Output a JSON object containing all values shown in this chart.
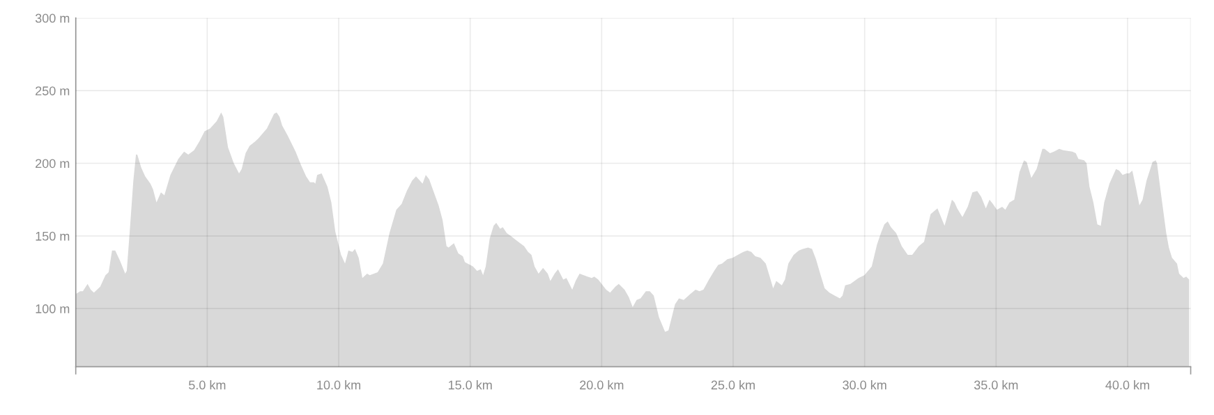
{
  "chart_data": {
    "type": "area",
    "grid": true,
    "xlim": [
      0,
      42.4
    ],
    "ylim": [
      60,
      300
    ],
    "xticks": [
      {
        "value": 0,
        "label": null
      },
      {
        "value": 5,
        "label": "5.0 km"
      },
      {
        "value": 10,
        "label": "10.0 km"
      },
      {
        "value": 15,
        "label": "15.0 km"
      },
      {
        "value": 20,
        "label": "20.0 km"
      },
      {
        "value": 25,
        "label": "25.0 km"
      },
      {
        "value": 30,
        "label": "30.0 km"
      },
      {
        "value": 35,
        "label": "35.0 km"
      },
      {
        "value": 40,
        "label": "40.0 km"
      },
      {
        "value": 42.4,
        "label": null
      }
    ],
    "yticks": [
      {
        "value": 100,
        "label": "100 m"
      },
      {
        "value": 150,
        "label": "150 m"
      },
      {
        "value": 200,
        "label": "200 m"
      },
      {
        "value": 250,
        "label": "250 m"
      },
      {
        "value": 300,
        "label": "300 m"
      }
    ],
    "series": [
      {
        "color": "#d9d9d9",
        "x": [
          0.0,
          0.17,
          0.27,
          0.45,
          0.57,
          0.69,
          0.93,
          1.13,
          1.25,
          1.38,
          1.5,
          1.68,
          1.88,
          1.94,
          2.06,
          2.19,
          2.29,
          2.34,
          2.49,
          2.64,
          2.84,
          2.94,
          3.07,
          3.24,
          3.37,
          3.6,
          3.9,
          4.12,
          4.28,
          4.5,
          4.7,
          4.9,
          5.11,
          5.21,
          5.36,
          5.53,
          5.61,
          5.79,
          6.01,
          6.21,
          6.31,
          6.46,
          6.61,
          6.82,
          6.94,
          7.27,
          7.54,
          7.64,
          7.75,
          7.85,
          8.06,
          8.36,
          8.56,
          8.76,
          8.91,
          9.06,
          9.11,
          9.18,
          9.35,
          9.57,
          9.72,
          9.87,
          10.09,
          10.24,
          10.37,
          10.52,
          10.62,
          10.76,
          10.9,
          11.08,
          11.18,
          11.48,
          11.68,
          11.93,
          12.19,
          12.39,
          12.59,
          12.79,
          12.94,
          13.19,
          13.31,
          13.44,
          13.6,
          13.8,
          13.95,
          14.1,
          14.18,
          14.38,
          14.55,
          14.72,
          14.8,
          15.0,
          15.11,
          15.26,
          15.4,
          15.49,
          15.59,
          15.74,
          15.89,
          15.99,
          16.14,
          16.24,
          16.39,
          16.54,
          16.75,
          17.05,
          17.2,
          17.33,
          17.45,
          17.6,
          17.77,
          17.95,
          18.05,
          18.21,
          18.34,
          18.54,
          18.66,
          18.88,
          19.01,
          19.16,
          19.46,
          19.62,
          19.72,
          19.87,
          20.17,
          20.32,
          20.52,
          20.65,
          20.87,
          21.03,
          21.18,
          21.33,
          21.48,
          21.68,
          21.83,
          21.98,
          22.18,
          22.41,
          22.54,
          22.79,
          22.94,
          23.12,
          23.37,
          23.57,
          23.72,
          23.87,
          24.08,
          24.28,
          24.43,
          24.58,
          24.78,
          24.98,
          25.18,
          25.39,
          25.54,
          25.69,
          25.84,
          26.04,
          26.24,
          26.39,
          26.52,
          26.64,
          26.85,
          26.97,
          27.1,
          27.3,
          27.5,
          27.65,
          27.85,
          28.0,
          28.15,
          28.31,
          28.48,
          28.66,
          28.86,
          29.06,
          29.16,
          29.26,
          29.46,
          29.77,
          29.99,
          30.27,
          30.47,
          30.62,
          30.75,
          30.88,
          31.0,
          31.2,
          31.41,
          31.64,
          31.81,
          32.06,
          32.26,
          32.51,
          32.77,
          33.04,
          33.32,
          33.42,
          33.52,
          33.72,
          33.92,
          34.1,
          34.28,
          34.43,
          34.61,
          34.75,
          34.88,
          35.03,
          35.23,
          35.35,
          35.51,
          35.69,
          35.89,
          36.06,
          36.16,
          36.34,
          36.54,
          36.76,
          36.84,
          37.05,
          37.2,
          37.4,
          37.55,
          37.9,
          38.03,
          38.13,
          38.35,
          38.44,
          38.55,
          38.7,
          38.85,
          38.98,
          39.11,
          39.31,
          39.56,
          39.68,
          39.81,
          39.96,
          40.06,
          40.18,
          40.31,
          40.45,
          40.57,
          40.72,
          40.95,
          41.07,
          41.12,
          41.27,
          41.47,
          41.57,
          41.69,
          41.88,
          41.96,
          42.13,
          42.23,
          42.34
        ],
        "values": [
          110,
          112,
          112,
          117,
          113,
          111,
          115,
          123,
          125,
          140,
          140,
          133,
          124,
          126,
          155,
          188,
          206,
          206,
          197,
          191,
          186,
          182,
          173,
          180,
          178,
          192,
          203,
          208,
          206,
          209,
          215,
          222,
          224,
          226,
          229,
          235,
          232,
          211,
          200,
          193,
          196,
          207,
          212,
          215,
          217,
          224,
          234,
          235,
          232,
          226,
          219,
          208,
          199,
          191,
          187,
          187,
          186,
          192,
          193,
          184,
          173,
          153,
          137,
          131,
          140,
          139,
          141,
          135,
          121,
          124,
          123,
          125,
          131,
          152,
          168,
          172,
          181,
          188,
          191,
          186,
          192,
          189,
          181,
          171,
          161,
          143,
          142,
          145,
          138,
          136,
          132,
          130,
          129,
          126,
          127,
          123,
          129,
          148,
          157,
          159,
          155,
          156,
          152,
          150,
          147,
          143,
          139,
          137,
          129,
          124,
          128,
          124,
          119,
          124,
          127,
          120,
          121,
          113,
          119,
          124,
          122,
          121,
          122,
          120,
          113,
          111,
          115,
          117,
          113,
          108,
          101,
          106,
          107,
          112,
          112,
          109,
          94,
          84,
          85,
          103,
          107,
          106,
          110,
          113,
          112,
          113,
          120,
          126,
          130,
          131,
          134,
          135,
          137,
          139,
          140,
          139,
          136,
          135,
          131,
          122,
          114,
          119,
          116,
          120,
          131,
          137,
          140,
          141,
          142,
          141,
          134,
          124,
          114,
          111,
          109,
          107,
          109,
          116,
          117,
          121,
          123,
          129,
          144,
          152,
          158,
          160,
          156,
          152,
          143,
          137,
          137,
          143,
          146,
          165,
          169,
          157,
          175,
          173,
          169,
          163,
          170,
          180,
          181,
          177,
          169,
          175,
          172,
          168,
          170,
          168,
          173,
          175,
          194,
          202,
          201,
          190,
          196,
          210,
          210,
          207,
          208,
          210,
          209,
          208,
          207,
          203,
          202,
          200,
          184,
          173,
          158,
          157,
          173,
          186,
          196,
          195,
          192,
          193,
          193,
          195,
          184,
          171,
          175,
          188,
          201,
          202,
          200,
          179,
          152,
          142,
          135,
          131,
          124,
          121,
          122,
          120
        ]
      }
    ]
  }
}
